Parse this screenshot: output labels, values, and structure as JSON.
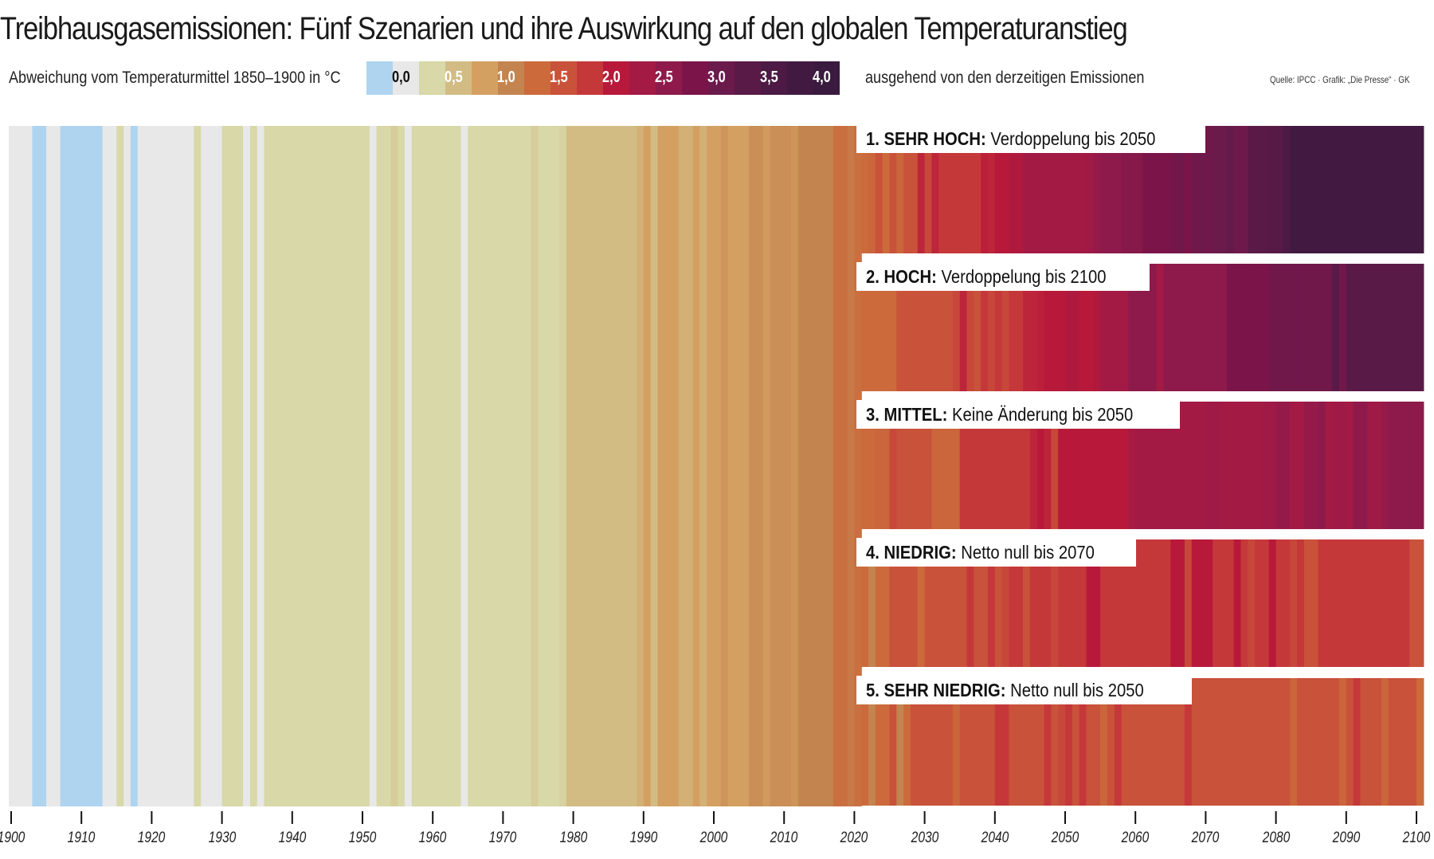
{
  "header": {
    "title": "Treibhausgasemissionen: Fünf Szenarien und ihre Auswirkung auf den globalen Temperaturanstieg",
    "legend_label": "Abweichung vom Temperaturmittel 1850–1900 in °C",
    "legend_note": "ausgehend von den derzeitigen Emissionen",
    "source": "Quelle: IPCC · Grafik: „Die Presse“ · GK"
  },
  "chart_data": {
    "type": "heatmap",
    "title": "Treibhausgasemissionen: Fünf Szenarien und ihre Auswirkung auf den globalen Temperaturanstieg",
    "xlabel": "",
    "ylabel": "",
    "x_range": [
      1900,
      2100
    ],
    "x_ticks": [
      "1900",
      "1910",
      "1920",
      "1930",
      "1940",
      "1950",
      "1960",
      "1970",
      "1980",
      "1990",
      "2000",
      "2010",
      "2020",
      "2030",
      "2040",
      "2050",
      "2060",
      "2070",
      "2080",
      "2090",
      "2100"
    ],
    "color_scale": {
      "label": "Abweichung vom Temperaturmittel 1850–1900 in °C",
      "stops": [
        {
          "value": -0.25,
          "color": "#aed4f0",
          "label": ""
        },
        {
          "value": 0.0,
          "color": "#e8e8e8",
          "label": "0,0"
        },
        {
          "value": 0.25,
          "color": "#d8d8a8",
          "label": ""
        },
        {
          "value": 0.5,
          "color": "#d2bc84",
          "label": "0,5"
        },
        {
          "value": 0.75,
          "color": "#d4a062",
          "label": ""
        },
        {
          "value": 1.0,
          "color": "#c4844f",
          "label": "1,0"
        },
        {
          "value": 1.25,
          "color": "#cc6a3c",
          "label": ""
        },
        {
          "value": 1.5,
          "color": "#c9523a",
          "label": "1,5"
        },
        {
          "value": 1.75,
          "color": "#c5383a",
          "label": ""
        },
        {
          "value": 2.0,
          "color": "#b8193a",
          "label": "2,0"
        },
        {
          "value": 2.25,
          "color": "#a31a45",
          "label": ""
        },
        {
          "value": 2.5,
          "color": "#8e1a4b",
          "label": "2,5"
        },
        {
          "value": 2.75,
          "color": "#7b1449",
          "label": ""
        },
        {
          "value": 3.0,
          "color": "#6b1a4c",
          "label": "3,0"
        },
        {
          "value": 3.25,
          "color": "#5a1a48",
          "label": ""
        },
        {
          "value": 3.5,
          "color": "#4c1a44",
          "label": "3,5"
        },
        {
          "value": 3.75,
          "color": "#421a41",
          "label": ""
        },
        {
          "value": 4.0,
          "color": "#3a1a3e",
          "label": "4,0"
        }
      ]
    },
    "historical": {
      "years": [
        1900,
        2020
      ],
      "values": [
        0.0,
        0.0,
        0.0,
        -0.2,
        -0.2,
        0.0,
        0.0,
        -0.2,
        -0.2,
        -0.2,
        -0.2,
        -0.2,
        -0.2,
        0.0,
        0.0,
        0.25,
        0.0,
        -0.2,
        0.0,
        0.0,
        0.0,
        0.0,
        0.0,
        0.0,
        0.0,
        0.0,
        0.25,
        0.0,
        0.0,
        0.0,
        0.25,
        0.25,
        0.25,
        0.0,
        0.25,
        0.0,
        0.25,
        0.25,
        0.25,
        0.25,
        0.25,
        0.25,
        0.25,
        0.25,
        0.25,
        0.25,
        0.25,
        0.25,
        0.25,
        0.25,
        0.25,
        0.0,
        0.25,
        0.25,
        0.35,
        0.25,
        0.0,
        0.25,
        0.25,
        0.25,
        0.25,
        0.25,
        0.25,
        0.25,
        0.0,
        0.25,
        0.25,
        0.25,
        0.25,
        0.25,
        0.25,
        0.25,
        0.25,
        0.25,
        0.35,
        0.25,
        0.25,
        0.25,
        0.3,
        0.5,
        0.5,
        0.5,
        0.5,
        0.5,
        0.5,
        0.5,
        0.5,
        0.5,
        0.5,
        0.6,
        0.75,
        0.5,
        0.75,
        0.75,
        0.75,
        0.6,
        0.6,
        0.75,
        0.6,
        0.75,
        0.75,
        0.85,
        0.75,
        0.75,
        0.75,
        0.9,
        0.9,
        0.8,
        0.9,
        0.9,
        0.9,
        0.85,
        1.0,
        1.0,
        1.0,
        1.0,
        1.0,
        1.2,
        1.2,
        1.1,
        1.2
      ]
    },
    "scenarios": [
      {
        "name": "1. SEHR HOCH",
        "description": "Verdoppelung bis 2050",
        "years": [
          2021,
          2100
        ],
        "values": [
          1.25,
          1.3,
          1.5,
          1.25,
          1.5,
          1.3,
          1.5,
          1.5,
          1.9,
          1.6,
          1.9,
          1.75,
          1.75,
          1.75,
          1.75,
          1.75,
          1.75,
          1.95,
          1.9,
          2.0,
          2.0,
          2.1,
          2.1,
          2.25,
          2.25,
          2.25,
          2.25,
          2.25,
          2.25,
          2.25,
          2.25,
          2.25,
          2.3,
          2.4,
          2.5,
          2.5,
          2.5,
          2.6,
          2.6,
          2.6,
          2.75,
          2.75,
          2.75,
          2.75,
          2.85,
          2.9,
          2.75,
          2.9,
          2.95,
          2.9,
          3.0,
          3.0,
          3.1,
          2.95,
          2.95,
          3.25,
          3.25,
          3.25,
          3.3,
          3.3,
          3.5,
          3.75,
          3.75,
          3.75,
          3.75,
          3.75,
          3.75,
          3.75,
          3.75,
          3.75,
          3.75,
          3.75,
          3.75,
          3.75,
          3.75,
          3.75,
          3.75,
          3.75,
          3.75,
          3.75
        ]
      },
      {
        "name": "2. HOCH",
        "description": "Verdoppelung bis 2100",
        "years": [
          2021,
          2100
        ],
        "values": [
          1.25,
          1.25,
          1.25,
          1.25,
          1.25,
          1.5,
          1.5,
          1.5,
          1.5,
          1.5,
          1.5,
          1.5,
          1.5,
          1.6,
          1.9,
          1.6,
          1.5,
          1.75,
          1.6,
          1.75,
          1.6,
          1.75,
          1.75,
          1.9,
          1.9,
          1.95,
          2.0,
          2.0,
          2.0,
          2.1,
          2.1,
          2.0,
          2.0,
          2.1,
          2.25,
          2.25,
          2.25,
          2.25,
          2.5,
          2.5,
          2.5,
          2.5,
          2.25,
          2.5,
          2.5,
          2.5,
          2.5,
          2.5,
          2.5,
          2.5,
          2.5,
          2.5,
          2.75,
          2.75,
          2.75,
          2.75,
          2.75,
          2.75,
          2.9,
          2.9,
          2.9,
          2.9,
          2.9,
          2.9,
          2.9,
          2.9,
          2.9,
          3.25,
          2.9,
          3.25,
          3.25,
          3.25,
          3.25,
          3.25,
          3.25,
          3.25,
          3.25,
          3.25,
          3.25,
          3.25
        ]
      },
      {
        "name": "3. MITTEL",
        "description": "Keine Änderung bis 2050",
        "years": [
          2021,
          2100
        ],
        "values": [
          1.25,
          1.25,
          1.3,
          1.3,
          1.6,
          1.5,
          1.5,
          1.5,
          1.5,
          1.5,
          1.3,
          1.3,
          1.3,
          1.3,
          1.75,
          1.75,
          1.75,
          1.75,
          1.75,
          1.75,
          1.75,
          1.75,
          1.75,
          1.75,
          1.9,
          2.0,
          1.9,
          1.6,
          2.0,
          2.0,
          2.0,
          2.0,
          2.0,
          2.0,
          2.0,
          2.0,
          2.0,
          2.0,
          2.2,
          2.25,
          2.25,
          2.25,
          2.25,
          2.25,
          2.25,
          2.25,
          2.25,
          2.25,
          2.25,
          2.3,
          2.3,
          2.25,
          2.25,
          2.25,
          2.25,
          2.25,
          2.25,
          2.3,
          2.3,
          2.4,
          2.4,
          2.25,
          2.25,
          2.4,
          2.4,
          2.5,
          2.25,
          2.3,
          2.3,
          2.25,
          2.5,
          2.5,
          2.3,
          2.3,
          2.4,
          2.5,
          2.5,
          2.5,
          2.5,
          2.5
        ]
      },
      {
        "name": "4. NIEDRIG",
        "description": "Netto null bis 2070",
        "years": [
          2021,
          2100
        ],
        "values": [
          1.25,
          1.0,
          1.25,
          1.25,
          1.5,
          1.5,
          1.5,
          1.5,
          1.25,
          1.5,
          1.5,
          1.5,
          1.5,
          1.5,
          1.5,
          1.75,
          1.5,
          1.5,
          1.75,
          1.5,
          1.6,
          1.75,
          1.75,
          1.5,
          1.75,
          1.75,
          1.75,
          1.6,
          1.75,
          1.75,
          1.75,
          1.75,
          2.0,
          2.0,
          1.75,
          1.75,
          1.75,
          1.75,
          1.75,
          1.75,
          1.75,
          1.75,
          1.75,
          1.75,
          2.0,
          2.0,
          1.6,
          2.0,
          2.0,
          2.0,
          1.75,
          1.75,
          1.75,
          2.0,
          1.75,
          1.6,
          1.75,
          1.75,
          2.0,
          1.75,
          1.75,
          1.6,
          1.75,
          1.5,
          1.5,
          1.75,
          1.75,
          1.75,
          1.75,
          1.75,
          1.75,
          1.75,
          1.75,
          1.75,
          1.75,
          1.75,
          1.75,
          1.75,
          1.5,
          1.5
        ]
      },
      {
        "name": "5. SEHR NIEDRIG",
        "description": "Netto null bis 2050",
        "years": [
          2021,
          2100
        ],
        "values": [
          1.25,
          1.0,
          1.25,
          1.25,
          1.5,
          1.0,
          1.25,
          1.5,
          1.5,
          1.5,
          1.5,
          1.5,
          1.5,
          1.3,
          1.5,
          1.5,
          1.5,
          1.5,
          1.5,
          1.75,
          1.75,
          1.5,
          1.5,
          1.5,
          1.5,
          1.5,
          1.75,
          1.5,
          1.6,
          1.75,
          1.5,
          1.75,
          1.5,
          1.5,
          1.3,
          1.5,
          1.75,
          1.5,
          1.5,
          1.5,
          1.5,
          1.5,
          1.5,
          1.5,
          1.5,
          1.5,
          1.75,
          1.5,
          1.5,
          1.5,
          1.5,
          1.5,
          1.5,
          1.5,
          1.5,
          1.5,
          1.5,
          1.5,
          1.5,
          1.5,
          1.5,
          1.3,
          1.5,
          1.5,
          1.5,
          1.5,
          1.5,
          1.5,
          1.3,
          1.5,
          1.75,
          1.5,
          1.5,
          1.5,
          1.3,
          1.5,
          1.5,
          1.5,
          1.5,
          1.25
        ]
      }
    ],
    "legend": "top-left",
    "grid": false
  },
  "labels": {
    "scenario_titles": [
      "1. SEHR HOCH:",
      "2. HOCH:",
      "3. MITTEL:",
      "4. NIEDRIG:",
      "5. SEHR NIEDRIG:"
    ],
    "scenario_subtitles": [
      " Verdoppelung bis 2050",
      " Verdoppelung bis 2100",
      " Keine Änderung bis 2050",
      " Netto null bis 2070",
      " Netto null bis 2050"
    ]
  }
}
